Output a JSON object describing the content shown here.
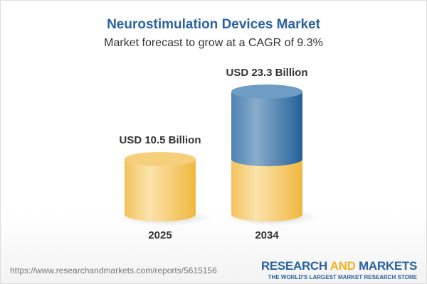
{
  "title": "Neurostimulation Devices Market",
  "subtitle": "Market forecast to grow at a CAGR of 9.3%",
  "chart_data": {
    "type": "bar",
    "style": "3d-cylinder",
    "categories": [
      "2025",
      "2034"
    ],
    "values": [
      10.5,
      23.3
    ],
    "data_labels": [
      "USD 10.5 Billion",
      "USD 23.3 Billion"
    ],
    "unit": "USD Billion",
    "colors": {
      "base": "#f3c35a",
      "growth": "#3f77aa"
    }
  },
  "footer": {
    "url": "https://www.researchandmarkets.com/reports/5615156",
    "logo_part1": "RESEARCH ",
    "logo_part2": "AND",
    "logo_part3": " MARKETS",
    "tagline": "THE WORLD'S LARGEST MARKET RESEARCH STORE"
  }
}
